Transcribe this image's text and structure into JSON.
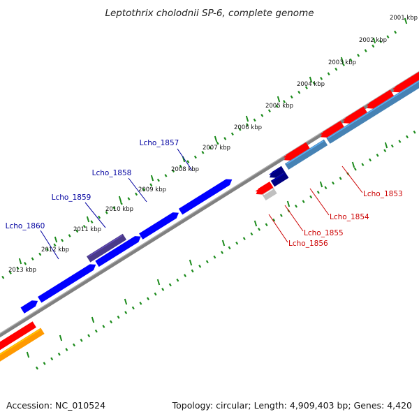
{
  "title": "Leptothrix cholodnii SP-6, complete genome",
  "footer": {
    "accession": "Accession: NC_010524",
    "summary": "Topology: circular; Length: 4,909,403 bp; Genes: 4,420"
  },
  "scale": {
    "unit": "kbp",
    "labels": [
      "2001 kbp",
      "2002 kbp",
      "2003 kbp",
      "2004 kbp",
      "2005 kbp",
      "2006 kbp",
      "2007 kbp",
      "2008 kbp",
      "2009 kbp",
      "2010 kbp",
      "2011 kbp",
      "2012 kbp",
      "2013 kbp"
    ],
    "color": "#1a8a1a"
  },
  "backbone_color": "#808080",
  "genes": [
    {
      "label": "Lcho_1860",
      "strand": "forward",
      "color": "#0000ff",
      "label_color": "#0000a0"
    },
    {
      "label": "Lcho_1859",
      "strand": "forward",
      "color": "#0000ff",
      "label_color": "#0000a0"
    },
    {
      "label": "Lcho_1858",
      "strand": "forward",
      "color": "#4a3a8a",
      "label_color": "#0000a0"
    },
    {
      "label": "Lcho_1857",
      "strand": "forward",
      "color": "#0000ff",
      "label_color": "#0000a0"
    },
    {
      "label": "Lcho_1853",
      "strand": "reverse",
      "color": "#4682b4",
      "label_color": "#cc0000"
    },
    {
      "label": "Lcho_1854",
      "strand": "reverse",
      "color": "#ff0000",
      "label_color": "#cc0000"
    },
    {
      "label": "Lcho_1855",
      "strand": "reverse",
      "color": "#000080",
      "label_color": "#cc0000"
    },
    {
      "label": "Lcho_1856",
      "strand": "reverse",
      "color": "#c0c0c0",
      "label_color": "#cc0000"
    }
  ],
  "other_colors": {
    "red": "#ff0000",
    "orange": "#ff9900"
  }
}
